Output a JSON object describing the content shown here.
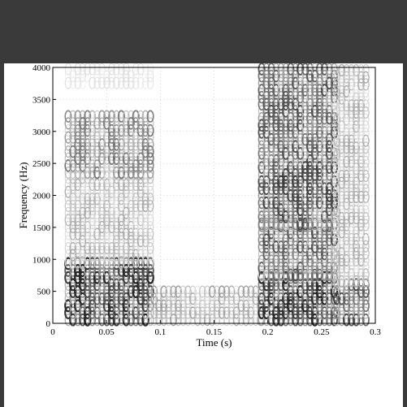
{
  "window": {
    "background": "#3a3a3a"
  },
  "figure": {
    "background": "#ffffff"
  },
  "chart_data": {
    "type": "heatmap",
    "subtype": "spectrogram",
    "title": "",
    "xlabel": "Time (s)",
    "ylabel": "Frequency (Hz)",
    "xlim": [
      0,
      0.3
    ],
    "ylim": [
      0,
      4000
    ],
    "x_ticks": [
      0,
      0.05,
      0.1,
      0.15,
      0.2,
      0.25,
      0.3
    ],
    "x_tick_labels": [
      "0",
      "0.05",
      "0.1",
      "0.15",
      "0.2",
      "0.25",
      "0.3"
    ],
    "y_ticks": [
      0,
      500,
      1000,
      1500,
      2000,
      2500,
      3000,
      3500,
      4000
    ],
    "y_tick_labels": [
      "0",
      "500",
      "1000",
      "1500",
      "2000",
      "2500",
      "3000",
      "3500",
      "4000"
    ],
    "grid": true,
    "colormap": "grayscale (dark = high energy)",
    "segments": [
      {
        "t_start": 0.012,
        "t_end": 0.092,
        "bands": [
          {
            "f_low": 0,
            "f_high": 900,
            "intensity": 0.9
          },
          {
            "f_low": 900,
            "f_high": 2300,
            "intensity": 0.35
          },
          {
            "f_low": 2300,
            "f_high": 3200,
            "intensity": 0.55
          },
          {
            "f_low": 3700,
            "f_high": 4000,
            "intensity": 0.15
          }
        ]
      },
      {
        "t_start": 0.092,
        "t_end": 0.192,
        "bands": [
          {
            "f_low": 0,
            "f_high": 550,
            "intensity": 0.4
          }
        ]
      },
      {
        "t_start": 0.192,
        "t_end": 0.262,
        "bands": [
          {
            "f_low": 0,
            "f_high": 700,
            "intensity": 0.9
          },
          {
            "f_low": 700,
            "f_high": 1500,
            "intensity": 0.7
          },
          {
            "f_low": 1500,
            "f_high": 2600,
            "intensity": 0.75
          },
          {
            "f_low": 2600,
            "f_high": 4000,
            "intensity": 0.7
          }
        ]
      },
      {
        "t_start": 0.262,
        "t_end": 0.293,
        "bands": [
          {
            "f_low": 0,
            "f_high": 600,
            "intensity": 0.75
          },
          {
            "f_low": 600,
            "f_high": 4000,
            "intensity": 0.35
          }
        ]
      }
    ]
  }
}
